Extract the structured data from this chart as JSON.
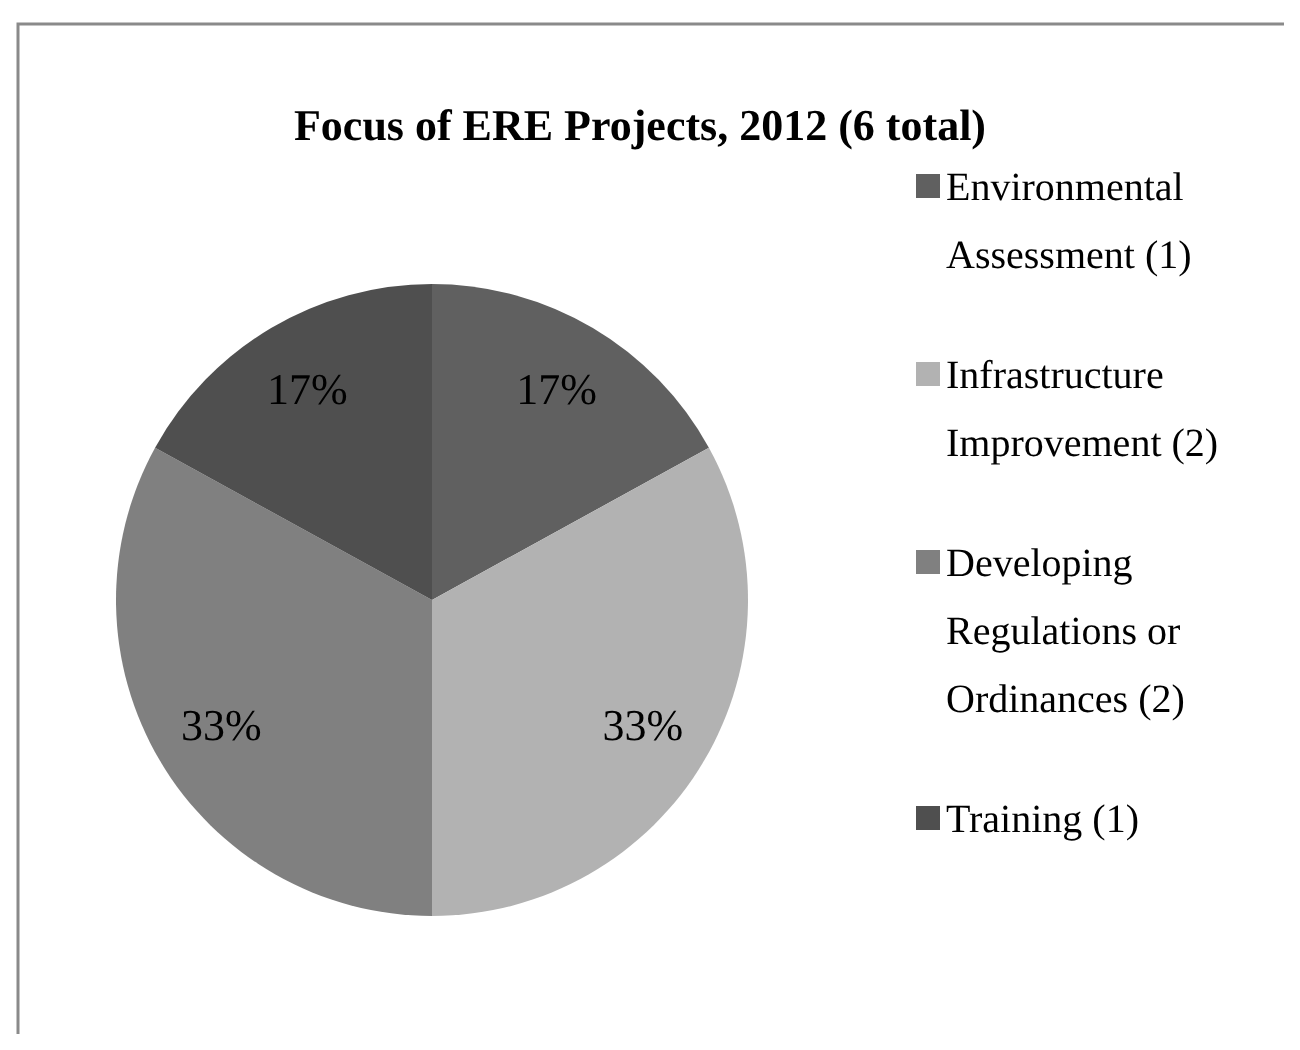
{
  "chart_data": {
    "type": "pie",
    "title": "Focus of ERE Projects, 2012 (6 total)",
    "categories": [
      "Environmental Assessment (1)",
      "Infrastructure Improvement (2)",
      "Developing Regulations or Ordinances (2)",
      "Training (1)"
    ],
    "values": [
      17,
      33,
      33,
      17
    ],
    "colors": [
      "#606060",
      "#b2b2b2",
      "#808080",
      "#4f4f4f"
    ],
    "value_labels": [
      "17%",
      "33%",
      "33%",
      "17%"
    ],
    "legend": "right"
  }
}
